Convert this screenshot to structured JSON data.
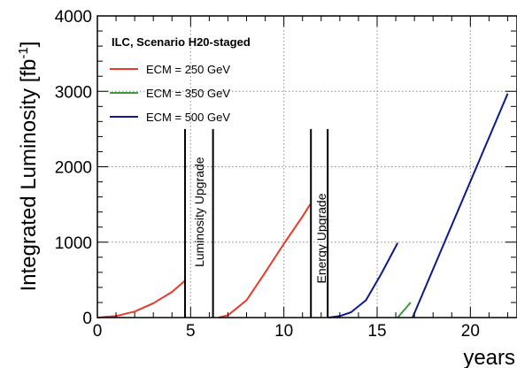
{
  "chart_data": {
    "type": "line",
    "ylabel": "Integrated Luminosity  [fb",
    "ylabel_sup": "-1",
    "ylabel_close": "]",
    "xlabel": "years",
    "xlim": [
      0,
      22.5
    ],
    "ylim": [
      0,
      4000
    ],
    "x_ticks": [
      0,
      5,
      10,
      15,
      20
    ],
    "x_tick_labels": [
      "0",
      "5",
      "10",
      "15",
      "20"
    ],
    "y_ticks": [
      0,
      1000,
      2000,
      3000,
      4000
    ],
    "y_tick_labels": [
      "0",
      "1000",
      "2000",
      "3000",
      "4000"
    ],
    "grid": true,
    "legend": {
      "title": "ILC, Scenario H20-staged",
      "placement": "top-left"
    },
    "series": [
      {
        "name": "ECM = 250 GeV",
        "color": "#e8392a",
        "segments": [
          [
            [
              0,
              0
            ],
            [
              1,
              20
            ],
            [
              2,
              80
            ],
            [
              3,
              190
            ],
            [
              4,
              340
            ],
            [
              4.7,
              490
            ]
          ],
          [
            [
              6.5,
              0
            ],
            [
              7,
              30
            ],
            [
              8,
              230
            ],
            [
              9,
              600
            ],
            [
              10,
              980
            ],
            [
              11,
              1340
            ],
            [
              11.4,
              1500
            ]
          ]
        ]
      },
      {
        "name": "ECM = 350 GeV",
        "color": "#3b9a3b",
        "segments": [
          [
            [
              16.1,
              0
            ],
            [
              16.8,
              200
            ]
          ]
        ]
      },
      {
        "name": "ECM = 500 GeV",
        "color": "#0d1a8c",
        "segments": [
          [
            [
              12.4,
              0
            ],
            [
              13,
              20
            ],
            [
              13.6,
              70
            ],
            [
              14.4,
              230
            ],
            [
              15.2,
              570
            ],
            [
              16.1,
              990
            ]
          ],
          [
            [
              16.9,
              0
            ],
            [
              22,
              2970
            ]
          ]
        ]
      }
    ],
    "vertical_lines": [
      4.7,
      6.2,
      11.45,
      12.35
    ],
    "vertical_line_top": 2500,
    "annotations": [
      {
        "text": "Luminosity Upgrade",
        "x": 5.45,
        "y": 1400
      },
      {
        "text": "Energy Upgrade",
        "x": 12.0,
        "y": 1050
      }
    ]
  }
}
